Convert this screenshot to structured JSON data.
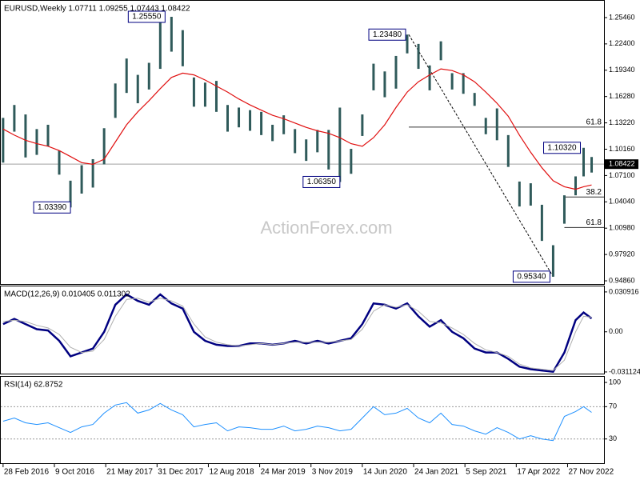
{
  "chart_data": [
    {
      "type": "ohlc",
      "title": "EURUSD,Weekly  1.07711 1.09255 1.07443 1.08422",
      "watermark": "ActionForex.com",
      "color": "#2f5a5a",
      "x": [
        "2016-02-28",
        "2016-04-17",
        "2016-06-05",
        "2016-07-24",
        "2016-09-11",
        "2016-10-30",
        "2016-12-18",
        "2017-02-05",
        "2017-03-26",
        "2017-05-14",
        "2017-07-02",
        "2017-08-20",
        "2017-10-08",
        "2017-11-26",
        "2018-01-14",
        "2018-03-04",
        "2018-04-22",
        "2018-06-10",
        "2018-07-29",
        "2018-09-16",
        "2018-11-04",
        "2018-12-23",
        "2019-02-10",
        "2019-03-31",
        "2019-05-19",
        "2019-07-07",
        "2019-08-25",
        "2019-10-13",
        "2019-12-01",
        "2020-01-19",
        "2020-03-08",
        "2020-04-26",
        "2020-06-14",
        "2020-08-02",
        "2020-09-20",
        "2020-11-08",
        "2020-12-27",
        "2021-02-14",
        "2021-04-04",
        "2021-05-23",
        "2021-07-11",
        "2021-08-29",
        "2021-10-17",
        "2021-12-05",
        "2022-01-23",
        "2022-03-13",
        "2022-05-01",
        "2022-06-19",
        "2022-08-07",
        "2022-09-25",
        "2022-11-13",
        "2023-01-01",
        "2023-02-05",
        "2023-03-12"
      ],
      "high": [
        1.138,
        1.153,
        1.142,
        1.125,
        1.13,
        1.1,
        1.065,
        1.083,
        1.09,
        1.126,
        1.178,
        1.207,
        1.188,
        1.202,
        1.2537,
        1.2555,
        1.24,
        1.185,
        1.179,
        1.181,
        1.153,
        1.15,
        1.147,
        1.145,
        1.13,
        1.141,
        1.125,
        1.113,
        1.124,
        1.124,
        1.15,
        1.102,
        1.142,
        1.201,
        1.192,
        1.21,
        1.2348,
        1.224,
        1.199,
        1.227,
        1.19,
        1.19,
        1.167,
        1.138,
        1.149,
        1.118,
        1.064,
        1.062,
        1.037,
        0.99,
        1.048,
        1.07,
        1.1032,
        1.09255
      ],
      "low": [
        1.086,
        1.122,
        1.092,
        1.095,
        1.105,
        1.072,
        1.0339,
        1.05,
        1.057,
        1.084,
        1.138,
        1.167,
        1.155,
        1.171,
        1.195,
        1.215,
        1.198,
        1.151,
        1.151,
        1.145,
        1.122,
        1.127,
        1.123,
        1.118,
        1.111,
        1.119,
        1.097,
        1.088,
        1.098,
        1.078,
        1.0635,
        1.073,
        1.117,
        1.17,
        1.162,
        1.172,
        1.213,
        1.195,
        1.17,
        1.205,
        1.171,
        1.166,
        1.152,
        1.119,
        1.112,
        1.081,
        1.035,
        1.036,
        0.995,
        0.9534,
        1.015,
        1.048,
        1.07,
        1.07443
      ],
      "ma": {
        "color": "#e01010",
        "values": [
          1.125,
          1.118,
          1.112,
          1.108,
          1.105,
          1.1,
          1.093,
          1.086,
          1.084,
          1.09,
          1.11,
          1.13,
          1.145,
          1.158,
          1.172,
          1.185,
          1.19,
          1.188,
          1.182,
          1.175,
          1.168,
          1.16,
          1.153,
          1.147,
          1.141,
          1.137,
          1.132,
          1.127,
          1.123,
          1.12,
          1.115,
          1.108,
          1.105,
          1.115,
          1.13,
          1.15,
          1.168,
          1.18,
          1.188,
          1.195,
          1.193,
          1.188,
          1.18,
          1.168,
          1.155,
          1.14,
          1.118,
          1.098,
          1.08,
          1.065,
          1.058,
          1.055,
          1.058,
          1.06
        ]
      },
      "last_price": 1.08422,
      "xlim": [
        "2016-02-18",
        "2023-05-05"
      ],
      "ylim": [
        0.9449,
        1.2741
      ],
      "yticks": [
        {
          "value": 1.2546,
          "label": "1.25460"
        },
        {
          "value": 1.224,
          "label": "1.22400"
        },
        {
          "value": 1.1934,
          "label": "1.19340"
        },
        {
          "value": 1.1628,
          "label": "1.16280"
        },
        {
          "value": 1.1322,
          "label": "1.13220"
        },
        {
          "value": 1.1016,
          "label": "1.10160"
        },
        {
          "value": 1.071,
          "label": "1.07100"
        },
        {
          "value": 1.0404,
          "label": "1.04040"
        },
        {
          "value": 1.0098,
          "label": "1.00980"
        },
        {
          "value": 0.9792,
          "label": "0.97920"
        },
        {
          "value": 0.9486,
          "label": "0.94860"
        }
      ],
      "annotations": [
        {
          "text": "1.25550",
          "x": "2018-02-18",
          "y": 1.2555
        },
        {
          "text": "1.03390",
          "x": "2017-01-01",
          "y": 1.0339
        },
        {
          "text": "1.06350",
          "x": "2020-03-22",
          "y": 1.0635
        },
        {
          "text": "1.23480",
          "x": "2021-01-03",
          "y": 1.2348
        },
        {
          "text": "0.95340",
          "x": "2022-09-25",
          "y": 0.9534
        },
        {
          "text": "1.10320",
          "x": "2023-02-05",
          "y": 1.1032
        }
      ],
      "trendline": {
        "from": {
          "x": "2021-01-03",
          "y": 1.2348
        },
        "to": {
          "x": "2022-09-25",
          "y": 0.9534
        }
      },
      "fib_levels": [
        {
          "ratio": 61.8,
          "price": 1.1273,
          "start": "2021-01-03"
        },
        {
          "ratio": 38.2,
          "price": 1.046,
          "start": "2022-11-13"
        },
        {
          "ratio": 61.8,
          "price": 1.0106,
          "start": "2022-11-13"
        }
      ]
    },
    {
      "type": "line",
      "title": "MACD(12,26,9) 0.010405 0.011302",
      "x": [
        "2016-02-28",
        "2016-04-17",
        "2016-06-05",
        "2016-07-24",
        "2016-09-11",
        "2016-10-30",
        "2016-12-18",
        "2017-02-05",
        "2017-03-26",
        "2017-05-14",
        "2017-07-02",
        "2017-08-20",
        "2017-10-08",
        "2017-11-26",
        "2018-01-14",
        "2018-03-04",
        "2018-04-22",
        "2018-06-10",
        "2018-07-29",
        "2018-09-16",
        "2018-11-04",
        "2018-12-23",
        "2019-02-10",
        "2019-03-31",
        "2019-05-19",
        "2019-07-07",
        "2019-08-25",
        "2019-10-13",
        "2019-12-01",
        "2020-01-19",
        "2020-03-08",
        "2020-04-26",
        "2020-06-14",
        "2020-08-02",
        "2020-09-20",
        "2020-11-08",
        "2020-12-27",
        "2021-02-14",
        "2021-04-04",
        "2021-05-23",
        "2021-07-11",
        "2021-08-29",
        "2021-10-17",
        "2021-12-05",
        "2022-01-23",
        "2022-03-13",
        "2022-05-01",
        "2022-06-19",
        "2022-08-07",
        "2022-09-25",
        "2022-11-13",
        "2023-01-01",
        "2023-02-05",
        "2023-03-12"
      ],
      "series": [
        {
          "color": "#000080",
          "values": [
            0.006,
            0.01,
            0.006,
            0.002,
            0.001,
            -0.007,
            -0.019,
            -0.016,
            -0.013,
            0,
            0.021,
            0.029,
            0.024,
            0.021,
            0.029,
            0.022,
            0.018,
            0,
            -0.007,
            -0.01,
            -0.011,
            -0.011,
            -0.009,
            -0.009,
            -0.01,
            -0.009,
            -0.007,
            -0.009,
            -0.007,
            -0.009,
            -0.007,
            -0.005,
            0.006,
            0.022,
            0.021,
            0.018,
            0.022,
            0.012,
            0.004,
            0.009,
            0,
            -0.005,
            -0.013,
            -0.016,
            -0.016,
            -0.021,
            -0.027,
            -0.029,
            -0.03,
            -0.031,
            -0.016,
            0.009,
            0.015,
            0.010405
          ]
        },
        {
          "color": "#b0b0b0",
          "values": [
            0.008,
            0.009,
            0.008,
            0.005,
            0.003,
            -0.002,
            -0.012,
            -0.016,
            -0.015,
            -0.006,
            0.012,
            0.025,
            0.026,
            0.023,
            0.026,
            0.024,
            0.02,
            0.006,
            -0.004,
            -0.008,
            -0.01,
            -0.011,
            -0.01,
            -0.009,
            -0.01,
            -0.009,
            -0.008,
            -0.008,
            -0.008,
            -0.008,
            -0.007,
            -0.006,
            0.002,
            0.016,
            0.021,
            0.019,
            0.021,
            0.016,
            0.008,
            0.007,
            0.003,
            -0.002,
            -0.009,
            -0.014,
            -0.016,
            -0.019,
            -0.025,
            -0.028,
            -0.029,
            -0.03,
            -0.022,
            0,
            0.012,
            0.011302
          ]
        }
      ],
      "xlim": [
        "2016-02-18",
        "2023-05-05"
      ],
      "ylim": [
        -0.0324,
        0.0352
      ],
      "yticks": [
        0.030916,
        {
          "value": 0,
          "label": "0.00"
        },
        -0.031124
      ]
    },
    {
      "type": "line",
      "title": "RSI(14) 62.8752",
      "x": [
        "2016-02-28",
        "2016-04-17",
        "2016-06-05",
        "2016-07-24",
        "2016-09-11",
        "2016-10-30",
        "2016-12-18",
        "2017-02-05",
        "2017-03-26",
        "2017-05-14",
        "2017-07-02",
        "2017-08-20",
        "2017-10-08",
        "2017-11-26",
        "2018-01-14",
        "2018-03-04",
        "2018-04-22",
        "2018-06-10",
        "2018-07-29",
        "2018-09-16",
        "2018-11-04",
        "2018-12-23",
        "2019-02-10",
        "2019-03-31",
        "2019-05-19",
        "2019-07-07",
        "2019-08-25",
        "2019-10-13",
        "2019-12-01",
        "2020-01-19",
        "2020-03-08",
        "2020-04-26",
        "2020-06-14",
        "2020-08-02",
        "2020-09-20",
        "2020-11-08",
        "2020-12-27",
        "2021-02-14",
        "2021-04-04",
        "2021-05-23",
        "2021-07-11",
        "2021-08-29",
        "2021-10-17",
        "2021-12-05",
        "2022-01-23",
        "2022-03-13",
        "2022-05-01",
        "2022-06-19",
        "2022-08-07",
        "2022-09-25",
        "2022-11-13",
        "2023-01-01",
        "2023-02-05",
        "2023-03-12"
      ],
      "series": [
        {
          "color": "#1e90ff",
          "values": [
            52,
            56,
            50,
            48,
            50,
            44,
            38,
            45,
            48,
            62,
            72,
            75,
            62,
            66,
            74,
            66,
            60,
            45,
            48,
            50,
            40,
            45,
            44,
            42,
            42,
            46,
            40,
            42,
            46,
            44,
            40,
            42,
            56,
            70,
            60,
            62,
            68,
            56,
            50,
            62,
            48,
            46,
            40,
            36,
            44,
            38,
            30,
            34,
            30,
            28,
            58,
            64,
            70,
            62.8752
          ]
        }
      ],
      "levels": [
        30,
        70
      ],
      "xlim": [
        "2016-02-18",
        "2023-05-05"
      ],
      "ylim": [
        0,
        107
      ],
      "yticks": [
        100,
        70,
        30
      ],
      "xticks": [
        {
          "value": "2016-02-28",
          "label": "28 Feb 2016"
        },
        {
          "value": "2016-10-09",
          "label": "9 Oct 2016"
        },
        {
          "value": "2017-05-21",
          "label": "21 May 2017"
        },
        {
          "value": "2017-12-31",
          "label": "31 Dec 2017"
        },
        {
          "value": "2018-08-12",
          "label": "12 Aug 2018"
        },
        {
          "value": "2019-03-24",
          "label": "24 Mar 2019"
        },
        {
          "value": "2019-11-03",
          "label": "3 Nov 2019"
        },
        {
          "value": "2020-06-14",
          "label": "14 Jun 2020"
        },
        {
          "value": "2021-01-24",
          "label": "24 Jan 2021"
        },
        {
          "value": "2021-09-05",
          "label": "5 Sep 2021"
        },
        {
          "value": "2022-04-17",
          "label": "17 Apr 2022"
        },
        {
          "value": "2022-11-27",
          "label": "27 Nov 2022"
        }
      ]
    }
  ]
}
